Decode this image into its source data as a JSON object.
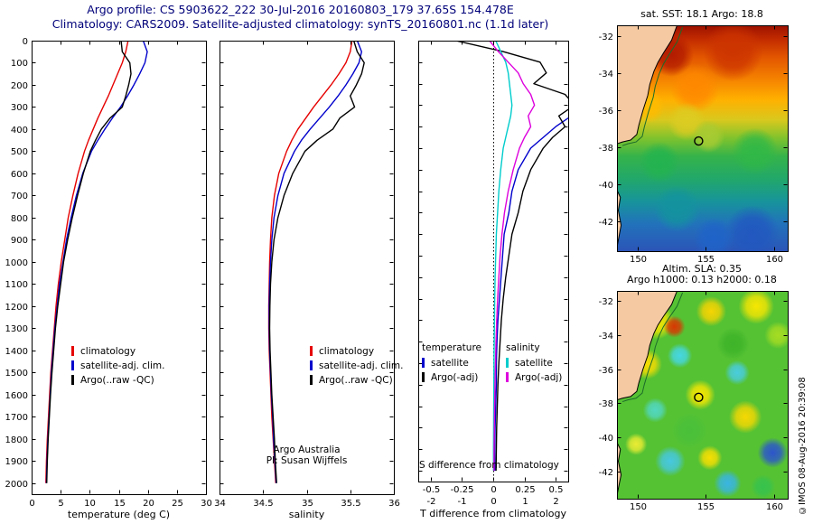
{
  "title": {
    "line1": "Argo profile: CS 5903622_222 30-Jul-2016 20160803_179 37.65S 154.478E",
    "line2": "Climatology: CARS2009. Satellite-adjusted climatology: synTS_20160801.nc (1.1d later)"
  },
  "watermark": "©IMOS 08-Aug-2016 20:39:08",
  "annotations": {
    "argo_program": "Argo Australia",
    "pi": "PI: Susan Wijffels",
    "s_diff_label": "S difference from climatology"
  },
  "axis_labels": {
    "temp": "temperature (deg C)",
    "sal": "salinity",
    "t_diff": "T difference from climatology"
  },
  "map_titles": {
    "sst": "sat. SST: 18.1  Argo: 18.8",
    "sla1": "Altim. SLA: 0.35",
    "sla2": "Argo h1000: 0.13 h2000: 0.18"
  },
  "legend_profile": {
    "items": [
      {
        "label": "climatology",
        "color": "#e60000"
      },
      {
        "label": "satellite-adj. clim.",
        "color": "#0000cc"
      },
      {
        "label": "Argo(..raw -QC)",
        "color": "#000000"
      }
    ]
  },
  "legend_diff": {
    "columns": [
      {
        "header": "temperature",
        "items": [
          {
            "label": "satellite",
            "color": "#0000cc"
          },
          {
            "label": "Argo(-adj)",
            "color": "#000000"
          }
        ]
      },
      {
        "header": "salinity",
        "items": [
          {
            "label": "satellite",
            "color": "#00cccc"
          },
          {
            "label": "Argo(-adj)",
            "color": "#dd00dd"
          }
        ]
      }
    ]
  },
  "chart_data": [
    {
      "id": "temp_profile",
      "type": "line",
      "xlabel": "temperature (deg C)",
      "ylabel": "depth (m)",
      "xlim": [
        0,
        30
      ],
      "xticks": [
        0,
        5,
        10,
        15,
        20,
        25,
        30
      ],
      "ylim": [
        0,
        2050
      ],
      "yticks": [
        0,
        100,
        200,
        300,
        400,
        500,
        600,
        700,
        800,
        900,
        1000,
        1100,
        1200,
        1300,
        1400,
        1500,
        1600,
        1700,
        1800,
        1900,
        2000
      ],
      "y_inverted": true,
      "show_ylabels": true,
      "depths": [
        0,
        50,
        100,
        150,
        200,
        250,
        300,
        350,
        400,
        450,
        500,
        600,
        700,
        800,
        900,
        1000,
        1100,
        1200,
        1300,
        1400,
        1500,
        1600,
        1700,
        1800,
        1900,
        2000
      ],
      "series": [
        {
          "name": "climatology",
          "color": "#e60000",
          "values": [
            16.6,
            16.2,
            15.6,
            14.8,
            14.0,
            13.2,
            12.3,
            11.4,
            10.6,
            9.8,
            9.1,
            8.0,
            7.1,
            6.3,
            5.7,
            5.1,
            4.6,
            4.2,
            3.9,
            3.6,
            3.3,
            3.1,
            2.9,
            2.7,
            2.55,
            2.45
          ]
        },
        {
          "name": "satellite-adj. clim.",
          "color": "#0000cc",
          "values": [
            19.2,
            19.9,
            19.5,
            18.6,
            17.6,
            16.5,
            15.3,
            13.9,
            12.6,
            11.4,
            10.3,
            8.8,
            7.7,
            6.8,
            6.0,
            5.4,
            4.8,
            4.4,
            4.0,
            3.7,
            3.4,
            3.2,
            3.0,
            2.8,
            2.65,
            2.55
          ]
        },
        {
          "name": "Argo(..raw -QC)",
          "color": "#000000",
          "values": [
            15.4,
            15.6,
            16.9,
            17.1,
            16.7,
            16.2,
            15.6,
            13.5,
            12.0,
            11.0,
            10.1,
            8.9,
            7.9,
            7.0,
            6.2,
            5.5,
            5.0,
            4.5,
            4.1,
            3.8,
            3.5,
            3.25,
            3.05,
            2.85,
            2.7,
            2.6
          ]
        }
      ]
    },
    {
      "id": "sal_profile",
      "type": "line",
      "xlabel": "salinity",
      "ylabel": "depth (m)",
      "xlim": [
        34,
        36
      ],
      "xticks": [
        34,
        34.5,
        35,
        35.5,
        36
      ],
      "ylim": [
        0,
        2050
      ],
      "yticks": [
        0,
        100,
        200,
        300,
        400,
        500,
        600,
        700,
        800,
        900,
        1000,
        1100,
        1200,
        1300,
        1400,
        1500,
        1600,
        1700,
        1800,
        1900,
        2000
      ],
      "y_inverted": true,
      "show_ylabels": false,
      "depths": [
        0,
        50,
        100,
        150,
        200,
        250,
        300,
        350,
        400,
        450,
        500,
        600,
        700,
        800,
        900,
        1000,
        1100,
        1200,
        1300,
        1400,
        1500,
        1600,
        1700,
        1800,
        1900,
        2000
      ],
      "series": [
        {
          "name": "climatology",
          "color": "#e60000",
          "values": [
            35.52,
            35.5,
            35.45,
            35.37,
            35.28,
            35.18,
            35.08,
            34.99,
            34.9,
            34.83,
            34.77,
            34.68,
            34.63,
            34.6,
            34.585,
            34.575,
            34.57,
            34.565,
            34.565,
            34.57,
            34.58,
            34.59,
            34.6,
            34.615,
            34.63,
            34.645
          ]
        },
        {
          "name": "satellite-adj. clim.",
          "color": "#0000cc",
          "values": [
            35.58,
            35.63,
            35.6,
            35.53,
            35.45,
            35.36,
            35.26,
            35.15,
            35.04,
            34.94,
            34.86,
            34.74,
            34.67,
            34.625,
            34.6,
            34.585,
            34.575,
            34.57,
            34.57,
            34.575,
            34.585,
            34.595,
            34.61,
            34.62,
            34.635,
            34.65
          ]
        },
        {
          "name": "Argo(..raw -QC)",
          "color": "#000000",
          "values": [
            35.54,
            35.58,
            35.66,
            35.63,
            35.57,
            35.5,
            35.55,
            35.38,
            35.3,
            35.12,
            34.98,
            34.84,
            34.74,
            34.67,
            34.625,
            34.6,
            34.585,
            34.578,
            34.575,
            34.58,
            34.59,
            34.6,
            34.615,
            34.63,
            34.64,
            34.655
          ]
        }
      ]
    },
    {
      "id": "diff_profile",
      "type": "line",
      "xlabel": "T difference from climatology",
      "xlabel2": "S difference from climatology",
      "t_xlim": [
        -2.4,
        2.4
      ],
      "t_xticks": [
        -2,
        -1,
        0,
        1,
        2
      ],
      "s_xlim": [
        -0.6,
        0.6
      ],
      "s_xticks": [
        -0.5,
        -0.25,
        0,
        0.25,
        0.5
      ],
      "ylim": [
        0,
        2050
      ],
      "yticks": [
        0,
        100,
        200,
        300,
        400,
        500,
        600,
        700,
        800,
        900,
        1000,
        1100,
        1200,
        1300,
        1400,
        1500,
        1600,
        1700,
        1800,
        1900,
        2000
      ],
      "y_inverted": true,
      "zero_line": 0,
      "depths": [
        0,
        50,
        100,
        150,
        200,
        250,
        300,
        350,
        400,
        450,
        500,
        600,
        700,
        800,
        900,
        1000,
        1100,
        1200,
        1300,
        1400,
        1500,
        1600,
        1700,
        1800,
        1900,
        2000
      ],
      "series": [
        {
          "name": "satellite",
          "group": "temperature",
          "scale": "t",
          "color": "#0000cc",
          "values": [
            2.6,
            3.7,
            3.9,
            3.8,
            3.6,
            3.3,
            3.0,
            2.5,
            2.0,
            1.6,
            1.2,
            0.8,
            0.6,
            0.5,
            0.35,
            0.3,
            0.25,
            0.2,
            0.15,
            0.12,
            0.1,
            0.1,
            0.08,
            0.06,
            0.05,
            0.05
          ]
        },
        {
          "name": "Argo(-adj)",
          "group": "temperature",
          "scale": "t",
          "color": "#000000",
          "values": [
            -1.2,
            0.3,
            1.5,
            1.7,
            1.3,
            2.3,
            2.6,
            2.1,
            2.3,
            1.9,
            1.6,
            1.2,
            0.95,
            0.8,
            0.6,
            0.5,
            0.4,
            0.32,
            0.26,
            0.22,
            0.18,
            0.15,
            0.13,
            0.11,
            0.1,
            0.09
          ]
        },
        {
          "name": "satellite",
          "group": "salinity",
          "scale": "s",
          "color": "#00cccc",
          "values": [
            0.02,
            0.06,
            0.1,
            0.12,
            0.13,
            0.14,
            0.15,
            0.14,
            0.12,
            0.1,
            0.08,
            0.06,
            0.045,
            0.035,
            0.025,
            0.02,
            0.015,
            0.012,
            0.01,
            0.008,
            0.006,
            0.005,
            0.004,
            0.003,
            0.002,
            0.002
          ]
        },
        {
          "name": "Argo(-adj)",
          "group": "salinity",
          "scale": "s",
          "color": "#dd00dd",
          "values": [
            -0.03,
            0.04,
            0.12,
            0.2,
            0.24,
            0.3,
            0.33,
            0.28,
            0.3,
            0.25,
            0.21,
            0.16,
            0.12,
            0.09,
            0.07,
            0.055,
            0.045,
            0.035,
            0.028,
            0.022,
            0.018,
            0.014,
            0.011,
            0.009,
            0.007,
            0.006
          ]
        }
      ]
    },
    {
      "id": "sst_map",
      "type": "heatmap",
      "title": "sat. SST: 18.1  Argo: 18.8",
      "xlim": [
        148.5,
        161
      ],
      "ylim": [
        -43.6,
        -31.4
      ],
      "xticks": [
        150,
        155,
        160
      ],
      "yticks": [
        -32,
        -34,
        -36,
        -38,
        -40,
        -42
      ],
      "marker": {
        "lon": 154.478,
        "lat": -37.65
      },
      "land_color": "#f5c9a2",
      "band_stops": [
        [
          0.0,
          "#9b1000"
        ],
        [
          0.06,
          "#c22b00"
        ],
        [
          0.14,
          "#e25500"
        ],
        [
          0.24,
          "#f58300"
        ],
        [
          0.33,
          "#ffb100"
        ],
        [
          0.42,
          "#d8c81e"
        ],
        [
          0.5,
          "#7fc32d"
        ],
        [
          0.58,
          "#35b34a"
        ],
        [
          0.68,
          "#22a86a"
        ],
        [
          0.78,
          "#17949b"
        ],
        [
          0.88,
          "#2272bb"
        ],
        [
          1.0,
          "#2b55b8"
        ]
      ],
      "blobs": [
        [
          152.5,
          -33.0,
          1.6,
          "#b01800"
        ],
        [
          157.0,
          -32.8,
          2.2,
          "#cc3300"
        ],
        [
          154.2,
          -34.8,
          1.8,
          "#ff8800"
        ],
        [
          150.8,
          -35.8,
          1.2,
          "#ffbb00"
        ],
        [
          153.6,
          -36.6,
          1.4,
          "#ddcc22"
        ],
        [
          155.2,
          -37.4,
          1.2,
          "#aacc33"
        ],
        [
          151.6,
          -38.8,
          1.5,
          "#22b34f"
        ],
        [
          158.6,
          -38.2,
          1.7,
          "#2fb847"
        ],
        [
          152.9,
          -41.3,
          1.7,
          "#13939e"
        ],
        [
          158.4,
          -42.6,
          2.0,
          "#2157c0"
        ],
        [
          155.6,
          -42.9,
          1.5,
          "#1f63c9"
        ]
      ],
      "coast": [
        [
          152.9,
          -31.4
        ],
        [
          152.5,
          -32.2
        ],
        [
          151.9,
          -32.9
        ],
        [
          151.5,
          -33.4
        ],
        [
          151.2,
          -33.9
        ],
        [
          150.9,
          -34.6
        ],
        [
          150.75,
          -35.2
        ],
        [
          150.4,
          -36.0
        ],
        [
          150.1,
          -36.8
        ],
        [
          149.95,
          -37.3
        ],
        [
          149.5,
          -37.6
        ],
        [
          148.9,
          -37.7
        ],
        [
          148.5,
          -37.8
        ]
      ],
      "tasmania": [
        [
          148.5,
          -40.3
        ],
        [
          148.75,
          -40.7
        ],
        [
          148.6,
          -41.4
        ],
        [
          148.8,
          -42.2
        ],
        [
          148.6,
          -43.0
        ],
        [
          148.5,
          -43.4
        ]
      ]
    },
    {
      "id": "sla_map",
      "type": "heatmap",
      "title": "Altim. SLA: 0.35",
      "subtitle": "Argo h1000: 0.13 h2000: 0.18",
      "xlim": [
        148.5,
        161
      ],
      "ylim": [
        -43.6,
        -31.4
      ],
      "xticks": [
        150,
        155,
        160
      ],
      "yticks": [
        -32,
        -34,
        -36,
        -38,
        -40,
        -42
      ],
      "marker": {
        "lon": 154.478,
        "lat": -37.65
      },
      "land_color": "#f5c9a2",
      "background": "#55c233",
      "blobs": [
        [
          151.4,
          -33.2,
          1.3,
          "#ffe800"
        ],
        [
          152.7,
          -33.5,
          0.8,
          "#e03000"
        ],
        [
          155.4,
          -32.6,
          1.1,
          "#ffd500"
        ],
        [
          158.7,
          -32.3,
          1.3,
          "#ffe800"
        ],
        [
          160.3,
          -34.0,
          1.0,
          "#aadd22"
        ],
        [
          150.7,
          -35.7,
          1.1,
          "#ffdd00"
        ],
        [
          153.1,
          -35.2,
          0.9,
          "#45d8ec"
        ],
        [
          157.3,
          -36.2,
          0.9,
          "#49cde8"
        ],
        [
          154.6,
          -37.5,
          1.1,
          "#ffe800"
        ],
        [
          151.3,
          -38.4,
          0.9,
          "#52d8c8"
        ],
        [
          157.9,
          -38.8,
          1.2,
          "#ffd900"
        ],
        [
          159.9,
          -40.9,
          1.1,
          "#2a4fd4"
        ],
        [
          152.4,
          -41.4,
          1.1,
          "#46c8ea"
        ],
        [
          155.3,
          -41.2,
          0.9,
          "#ffe000"
        ],
        [
          156.6,
          -42.7,
          1.0,
          "#38b4ec"
        ],
        [
          149.9,
          -40.4,
          0.8,
          "#f2ee33"
        ],
        [
          159.2,
          -42.9,
          0.9,
          "#35c24f"
        ],
        [
          157.0,
          -34.5,
          1.2,
          "#3db329"
        ],
        [
          153.8,
          -39.6,
          1.3,
          "#49c03a"
        ]
      ],
      "coast": [
        [
          152.9,
          -31.4
        ],
        [
          152.5,
          -32.2
        ],
        [
          151.9,
          -32.9
        ],
        [
          151.5,
          -33.4
        ],
        [
          151.2,
          -33.9
        ],
        [
          150.9,
          -34.6
        ],
        [
          150.75,
          -35.2
        ],
        [
          150.4,
          -36.0
        ],
        [
          150.1,
          -36.8
        ],
        [
          149.95,
          -37.3
        ],
        [
          149.5,
          -37.6
        ],
        [
          148.9,
          -37.7
        ],
        [
          148.5,
          -37.8
        ]
      ],
      "tasmania": [
        [
          148.5,
          -40.3
        ],
        [
          148.75,
          -40.7
        ],
        [
          148.6,
          -41.4
        ],
        [
          148.8,
          -42.2
        ],
        [
          148.6,
          -43.0
        ],
        [
          148.5,
          -43.4
        ]
      ]
    }
  ]
}
